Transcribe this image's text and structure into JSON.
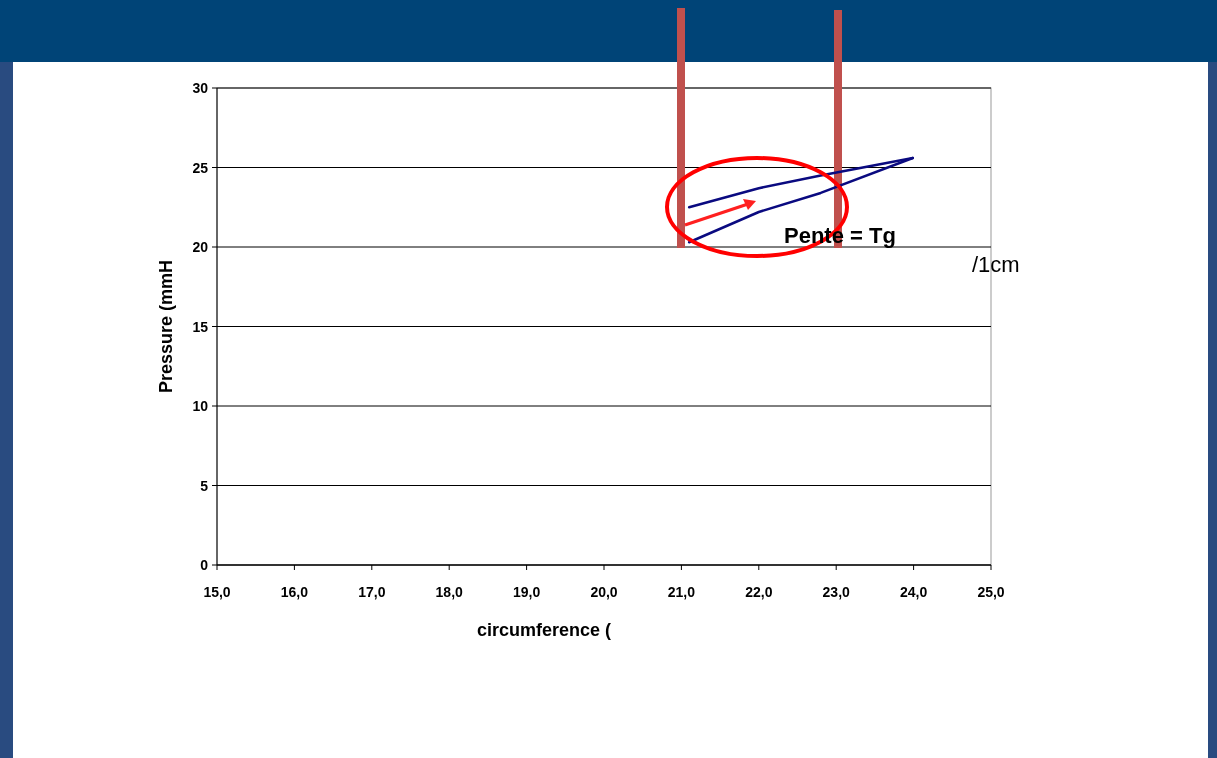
{
  "chart_data": {
    "type": "line",
    "xlabel": "circumference (",
    "ylabel": "Pressure (mmH",
    "xlim": [
      15,
      25
    ],
    "ylim": [
      0,
      30
    ],
    "xticks": [
      {
        "value": 15,
        "label": "15,0"
      },
      {
        "value": 16,
        "label": "16,0"
      },
      {
        "value": 17,
        "label": "17,0"
      },
      {
        "value": 18,
        "label": "18,0"
      },
      {
        "value": 19,
        "label": "19,0"
      },
      {
        "value": 20,
        "label": "20,0"
      },
      {
        "value": 21,
        "label": "21,0"
      },
      {
        "value": 22,
        "label": "22,0"
      },
      {
        "value": 23,
        "label": "23,0"
      },
      {
        "value": 24,
        "label": "24,0"
      },
      {
        "value": 25,
        "label": "25,0"
      }
    ],
    "yticks": [
      0,
      5,
      10,
      15,
      20,
      25,
      30
    ],
    "grid": "y",
    "marker": "none",
    "line_style": "solid",
    "series": [
      {
        "color": "#0a0a80",
        "x": [
          21.1,
          22.0,
          22.8,
          23.99
        ],
        "values": [
          22.5,
          23.7,
          24.5,
          25.6
        ]
      },
      {
        "color": "#0a0a80",
        "x": [
          21.1,
          22.0,
          22.8,
          23.99
        ],
        "values": [
          20.3,
          22.2,
          23.4,
          25.6
        ]
      }
    ],
    "annotations": [
      "Pente = Tg",
      "/1cm"
    ]
  }
}
